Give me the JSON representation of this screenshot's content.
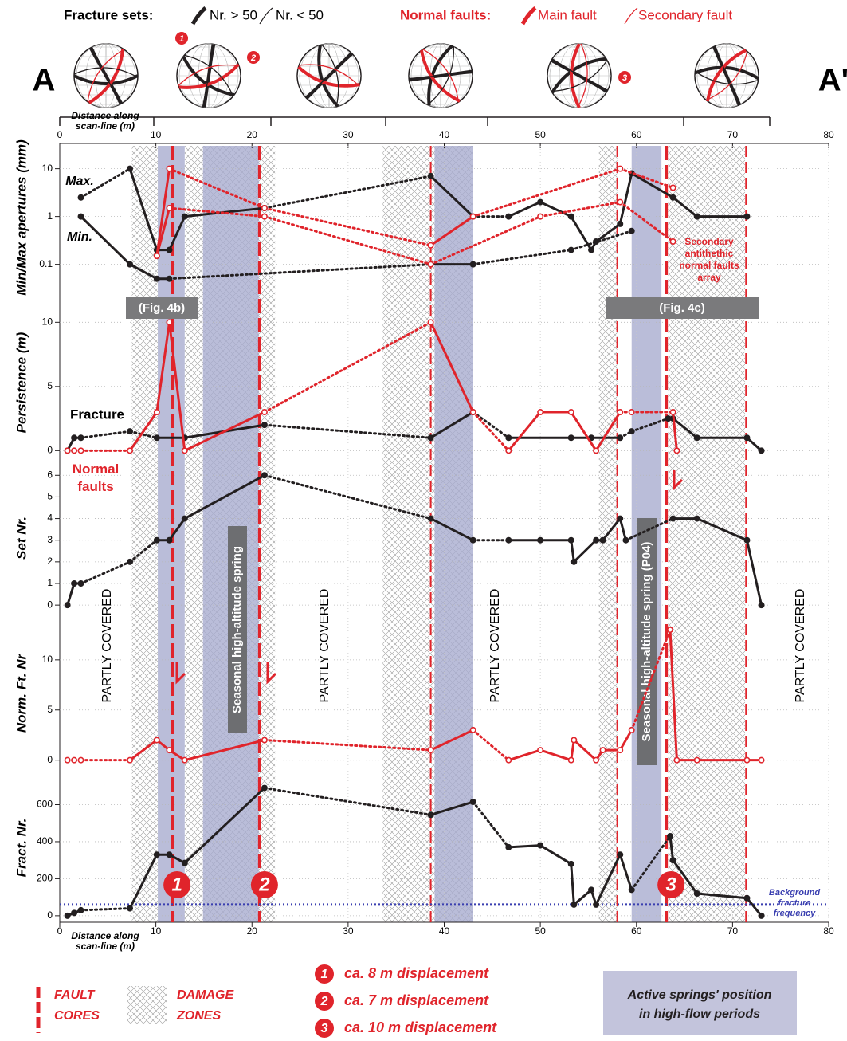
{
  "figure": {
    "section_start": "A",
    "section_end": "A'",
    "legend": {
      "fracture_sets": "Fracture sets:",
      "many": "Nr. > 50",
      "few": "Nr. < 50",
      "normal_faults": "Normal faults:",
      "main": "Main fault",
      "secondary": "Secondary fault"
    },
    "x_label": [
      "Distance along",
      "scan-line (m)"
    ],
    "xlim": [
      0,
      80
    ],
    "xticks": [
      0,
      10,
      20,
      30,
      40,
      50,
      60,
      70,
      80
    ],
    "damage_zones": [
      [
        7.5,
        10.2
      ],
      [
        13.0,
        22.4
      ],
      [
        33.6,
        43.0
      ],
      [
        56.1,
        58.0
      ],
      [
        63.3,
        71.3
      ]
    ],
    "springs": [
      [
        10.2,
        13.0
      ],
      [
        14.9,
        20.7
      ],
      [
        39.0,
        43.0
      ],
      [
        59.5,
        62.6
      ]
    ],
    "spring_color": "#a9acd0",
    "fault_cores": [
      {
        "x": 11.7,
        "main": true,
        "label": "1"
      },
      {
        "x": 20.8,
        "main": true,
        "label": "2"
      },
      {
        "x": 38.6,
        "main": false
      },
      {
        "x": 58.0,
        "main": false
      },
      {
        "x": 63.1,
        "main": true,
        "label": "3"
      },
      {
        "x": 71.4,
        "main": false
      }
    ],
    "fault_color": "#e0242b",
    "partly_covered": "PARTLY COVERED",
    "spring_labels": [
      "Seasonal high-altitude spring",
      "Seasonal high-altitude spring (P04)"
    ],
    "fig_refs": [
      "(Fig. 4b)",
      "(Fig. 4c)"
    ],
    "bottom_legend": {
      "fault_cores": [
        "FAULT",
        "CORES"
      ],
      "damage_zones": [
        "DAMAGE",
        "ZONES"
      ],
      "displacements": [
        "ca. 8 m displacement",
        "ca. 7 m displacement",
        "ca. 10 m displacement"
      ],
      "springs": [
        "Active springs' position",
        "in high-flow periods"
      ]
    }
  },
  "chart_data": [
    {
      "type": "line",
      "y_label": "Min/Max apertures (mm)",
      "log": true,
      "ylim": [
        0.03,
        30
      ],
      "yticks": [
        0.1,
        1,
        10
      ],
      "grid": true,
      "annotations": {
        "max": "Max.",
        "min": "Min.",
        "secondary": [
          "Secondary",
          "antithethic",
          "normal faults",
          "array"
        ]
      },
      "series": [
        {
          "color": "#231f20",
          "marker": "filled",
          "x": [
            2.2,
            7.3,
            10.1,
            11.4,
            13.0,
            21.3,
            38.6,
            43.0,
            46.7,
            50.0,
            53.2,
            55.3,
            55.8,
            58.3,
            59.5,
            63.8,
            66.3,
            71.5
          ],
          "values": [
            2.5,
            10,
            0.2,
            0.2,
            1,
            1.5,
            7,
            1,
            1,
            2,
            1,
            0.2,
            0.3,
            0.7,
            8,
            2.5,
            1,
            1
          ],
          "styles": [
            "dotted",
            "solid",
            "solid",
            "solid",
            "solid",
            "dotted",
            "solid",
            "dotted",
            "solid",
            "solid",
            "solid",
            "solid",
            "solid",
            "solid",
            "solid",
            "solid",
            "solid"
          ]
        },
        {
          "color": "#231f20",
          "marker": "filled",
          "x": [
            2.2,
            7.3,
            10.1,
            11.4,
            38.6,
            43.0,
            53.2,
            59.5
          ],
          "values": [
            1,
            0.1,
            0.05,
            0.05,
            0.1,
            0.1,
            0.2,
            0.5
          ],
          "styles": [
            "solid",
            "solid",
            "solid",
            "dotted",
            "solid",
            "dotted",
            "dotted"
          ]
        },
        {
          "color": "#e0242b",
          "marker": "open",
          "x": [
            10.1,
            11.4,
            21.3,
            38.6,
            43.0,
            58.3,
            63.8
          ],
          "values": [
            0.15,
            10,
            1.5,
            0.25,
            1,
            10,
            4
          ],
          "styles": [
            "solid",
            "dotted",
            "dotted",
            "solid",
            "dotted",
            "dotted"
          ]
        },
        {
          "color": "#e0242b",
          "marker": "open",
          "x": [
            10.1,
            11.4,
            21.3,
            38.6,
            50.0,
            58.3,
            63.8
          ],
          "values": [
            0.15,
            1.5,
            1,
            0.1,
            1,
            2,
            0.3
          ],
          "styles": [
            "solid",
            "dotted",
            "dotted",
            "dotted",
            "dotted",
            "dotted"
          ]
        }
      ]
    },
    {
      "type": "line",
      "y_label": "Persistence (m)",
      "ylim": [
        -0.6,
        11.2
      ],
      "yticks": [
        0,
        5,
        10
      ],
      "grid": true,
      "annotations": {
        "fracture": "Fracture",
        "faults": [
          "Normal",
          "faults"
        ]
      },
      "series": [
        {
          "color": "#231f20",
          "marker": "filled",
          "x": [
            0.8,
            1.5,
            2.2,
            7.3,
            10.1,
            13.0,
            21.3,
            38.6,
            43.0,
            46.7,
            53.2,
            55.3,
            58.3,
            59.5,
            63.3,
            63.8,
            66.3,
            71.5,
            73.0
          ],
          "values": [
            0,
            1,
            1,
            1.5,
            1,
            1,
            2,
            1,
            3,
            1,
            1,
            1,
            1,
            1.5,
            2.5,
            2.5,
            1,
            1,
            0
          ],
          "styles": [
            "solid",
            "solid",
            "dotted",
            "dotted",
            "solid",
            "solid",
            "dotted",
            "solid",
            "dotted",
            "solid",
            "solid",
            "solid",
            "dotted",
            "dotted",
            "solid",
            "solid",
            "solid",
            "solid"
          ]
        },
        {
          "color": "#e0242b",
          "marker": "open",
          "x": [
            0.8,
            1.5,
            2.2,
            7.3,
            10.1,
            11.4,
            13.0,
            21.3,
            38.6,
            43.0,
            46.7,
            50.0,
            53.2,
            55.8,
            58.3,
            59.5,
            63.8,
            64.2
          ],
          "values": [
            0,
            0,
            0,
            0,
            3,
            10,
            0,
            3,
            10,
            3,
            0,
            3,
            3,
            0,
            3,
            3,
            3,
            0
          ],
          "styles": [
            "dotted",
            "dotted",
            "dotted",
            "solid",
            "solid",
            "solid",
            "solid",
            "dotted",
            "solid",
            "dotted",
            "solid",
            "solid",
            "solid",
            "solid",
            "dotted",
            "dotted",
            "solid"
          ]
        }
      ]
    },
    {
      "type": "line",
      "y_label": "Set Nr.",
      "ylim": [
        -0.4,
        6.6
      ],
      "yticks": [
        0,
        1,
        2,
        3,
        4,
        5,
        6
      ],
      "grid": true,
      "series": [
        {
          "color": "#231f20",
          "marker": "filled",
          "x": [
            0.8,
            1.5,
            2.2,
            7.3,
            10.1,
            11.4,
            13.0,
            21.3,
            38.6,
            43.0,
            46.7,
            50.0,
            53.2,
            53.5,
            55.8,
            56.5,
            58.3,
            58.9,
            63.8,
            66.3,
            71.5,
            73.0
          ],
          "values": [
            0,
            1,
            1,
            2,
            3,
            3,
            4,
            6,
            4,
            3,
            3,
            3,
            3,
            2,
            3,
            3,
            4,
            3,
            4,
            4,
            3,
            0
          ],
          "styles": [
            "solid",
            "solid",
            "dotted",
            "dotted",
            "solid",
            "solid",
            "solid",
            "dotted",
            "solid",
            "dotted",
            "solid",
            "solid",
            "solid",
            "solid",
            "solid",
            "solid",
            "solid",
            "dotted",
            "solid",
            "solid",
            "solid"
          ]
        }
      ]
    },
    {
      "type": "line",
      "y_label": "Norm. Ft. Nr",
      "ylim": [
        -0.9,
        14.2
      ],
      "yticks": [
        0,
        5,
        10
      ],
      "grid": true,
      "series": [
        {
          "color": "#e0242b",
          "marker": "open",
          "x": [
            0.8,
            1.5,
            2.2,
            7.3,
            10.1,
            11.4,
            13.0,
            21.3,
            38.6,
            43.0,
            46.7,
            50.0,
            53.2,
            53.5,
            55.8,
            56.5,
            58.3,
            59.5,
            63.5,
            64.2,
            66.3,
            71.5,
            73.0
          ],
          "values": [
            0,
            0,
            0,
            0,
            2,
            1,
            0,
            2,
            1,
            3,
            0,
            1,
            0,
            2,
            0,
            1,
            1,
            3,
            13,
            0,
            0,
            0,
            0
          ],
          "styles": [
            "dotted",
            "dotted",
            "dotted",
            "solid",
            "solid",
            "solid",
            "solid",
            "dotted",
            "solid",
            "dotted",
            "solid",
            "solid",
            "solid",
            "solid",
            "solid",
            "solid",
            "solid",
            "dotted",
            "solid",
            "solid",
            "solid",
            "solid"
          ]
        }
      ]
    },
    {
      "type": "line",
      "y_label": "Fract. Nr.",
      "ylim": [
        -35,
        770
      ],
      "yticks": [
        0,
        200,
        400,
        600
      ],
      "grid": true,
      "background_frequency": 60,
      "background_color": "#3a3fb0",
      "background_label": [
        "Background",
        "fracture",
        "frequency"
      ],
      "series": [
        {
          "color": "#231f20",
          "marker": "filled",
          "x": [
            0.8,
            1.5,
            2.2,
            7.3,
            10.1,
            11.4,
            13.0,
            21.3,
            38.6,
            43.0,
            46.7,
            50.0,
            53.2,
            53.5,
            55.3,
            55.8,
            58.3,
            59.5,
            63.5,
            63.8,
            66.3,
            71.5,
            73.0
          ],
          "values": [
            0,
            15,
            30,
            40,
            330,
            330,
            285,
            690,
            545,
            615,
            370,
            380,
            280,
            60,
            140,
            60,
            330,
            140,
            430,
            300,
            120,
            95,
            0
          ],
          "styles": [
            "solid",
            "solid",
            "dotted",
            "solid",
            "solid",
            "solid",
            "solid",
            "dotted",
            "solid",
            "dotted",
            "solid",
            "solid",
            "solid",
            "solid",
            "solid",
            "solid",
            "solid",
            "dotted",
            "solid",
            "solid",
            "solid",
            "solid"
          ]
        }
      ]
    }
  ]
}
